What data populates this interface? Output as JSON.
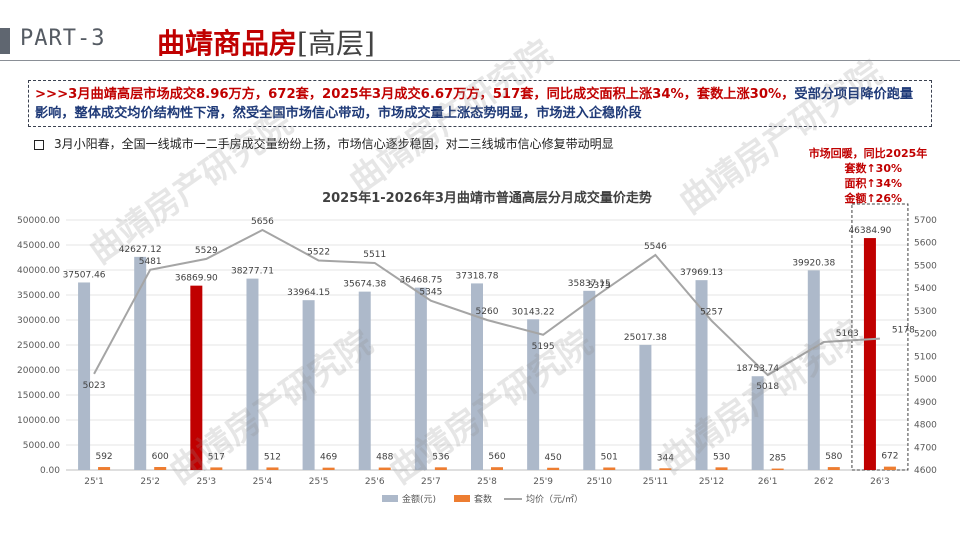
{
  "header": {
    "part": "PART-3",
    "title": "曲靖商品房",
    "subtitle": "[高层]"
  },
  "summary": {
    "highlight": ">>>3月曲靖高层市场成交8.96万方，672套，2025年3月成交6.67万方，517套，同比成交面积上涨34%，套数上涨30%，",
    "rest": "受部分项目降价跑量影响，整体成交均价结构性下滑，然受全国市场信心带动，市场成交量上涨态势明显，市场进入企稳阶段"
  },
  "bullet": "3月小阳春，全国一线城市一二手房成交量纷纷上扬，市场信心逐步稳固，对二三线城市信心修复带动明显",
  "callout": {
    "line1": "市场回暖，同比2025年",
    "line2": "套数↑30%",
    "line3": "面积↑34%",
    "line4": "金额↑26%"
  },
  "watermark": "曲靖房产研究院",
  "colors": {
    "amount_bar": "#adb9ca",
    "highlight_bar": "#c00000",
    "units_bar": "#ed7d31",
    "price_line": "#a5a5a5",
    "title_red": "#c00000",
    "summary_blue": "#1f3a78"
  },
  "chart_data": {
    "type": "bar",
    "title": "2025年1-2026年3月曲靖市普通高层分月成交量价走势",
    "categories": [
      "25'1",
      "25'2",
      "25'3",
      "25'4",
      "25'5",
      "25'6",
      "25'7",
      "25'8",
      "25'9",
      "25'10",
      "25'11",
      "25'12",
      "26'1",
      "26'2",
      "26'3"
    ],
    "series": [
      {
        "name": "金额(元)",
        "type": "bar",
        "axis": "left",
        "values": [
          37507.46,
          42627.12,
          36869.9,
          38277.71,
          33964.15,
          35674.38,
          36468.75,
          37318.78,
          30143.22,
          35837.15,
          25017.38,
          37969.13,
          18753.74,
          39920.38,
          46384.9
        ],
        "labels": [
          "37507.46",
          "42627.12",
          "36869.90",
          "38277.71",
          "33964.15",
          "35674.38",
          "36468.75",
          "37318.78",
          "30143.22",
          "35837.15",
          "25017.38",
          "37969.13",
          "18753.74",
          "39920.38",
          "46384.90"
        ],
        "highlight_indices": [
          2,
          14
        ]
      },
      {
        "name": "套数",
        "type": "bar",
        "axis": "left",
        "values": [
          592,
          600,
          517,
          512,
          469,
          488,
          536,
          560,
          450,
          501,
          344,
          530,
          285,
          580,
          672
        ]
      },
      {
        "name": "均价（元/㎡）",
        "type": "line",
        "axis": "right",
        "values": [
          5023,
          5481,
          5529,
          5656,
          5522,
          5511,
          5345,
          5260,
          5195,
          5375,
          5546,
          5257,
          5018,
          5163,
          5178
        ]
      }
    ],
    "y_left": {
      "min": 0,
      "max": 50000,
      "step": 5000,
      "ticks": [
        "0.00",
        "5000.00",
        "10000.00",
        "15000.00",
        "20000.00",
        "25000.00",
        "30000.00",
        "35000.00",
        "40000.00",
        "45000.00",
        "50000.00"
      ]
    },
    "y_right": {
      "min": 4600,
      "max": 5700,
      "step": 100,
      "ticks": [
        "4600",
        "4700",
        "4800",
        "4900",
        "5000",
        "5100",
        "5200",
        "5300",
        "5400",
        "5500",
        "5600",
        "5700"
      ]
    },
    "grid": true,
    "legend_position": "bottom",
    "highlight_box_category": "26'3"
  }
}
